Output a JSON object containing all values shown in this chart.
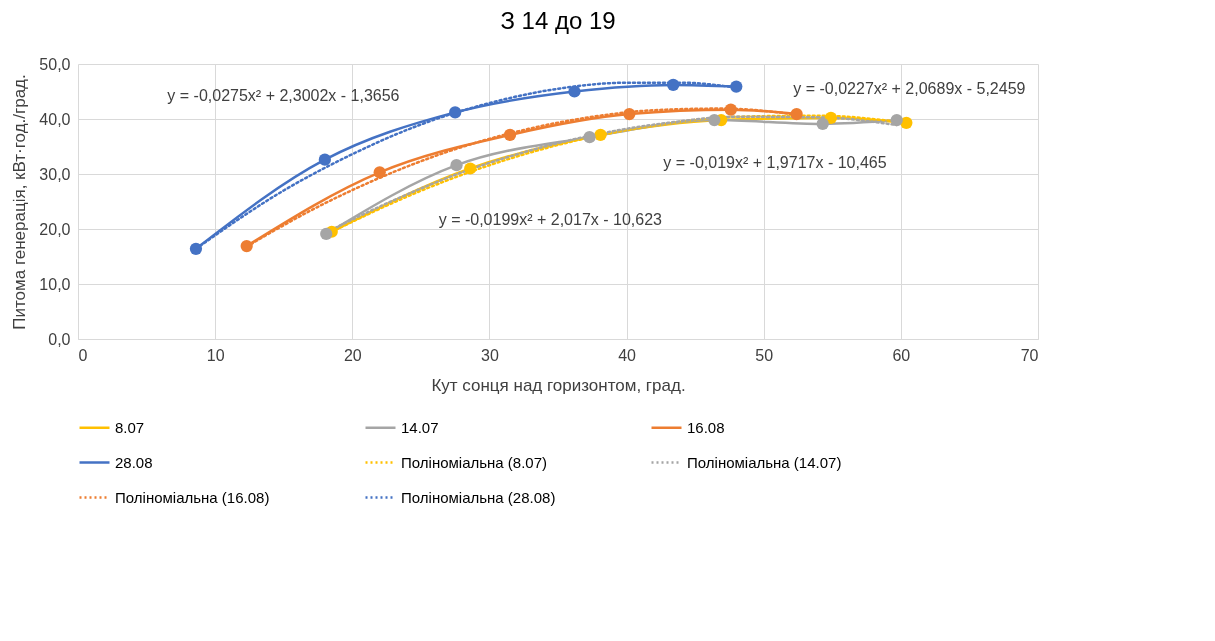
{
  "chart_data": {
    "type": "line",
    "title": "З  14 до 19",
    "xlabel": "Кут сонця над горизонтом, град.",
    "ylabel": "Питома генерація, кВт·год./град.",
    "xlim": [
      0,
      70
    ],
    "xticks": [
      0,
      10,
      20,
      30,
      40,
      50,
      60,
      70
    ],
    "ylim": [
      0,
      50
    ],
    "yticks": [
      {
        "value": 0,
        "label": "0,0"
      },
      {
        "value": 10,
        "label": "10,0"
      },
      {
        "value": 20,
        "label": "20,0"
      },
      {
        "value": 30,
        "label": "30,0"
      },
      {
        "value": 40,
        "label": "40,0"
      },
      {
        "value": 50,
        "label": "50,0"
      }
    ],
    "grid": true,
    "legend": "bottom",
    "series": [
      {
        "name": "8.07",
        "color": "#ffc000",
        "marker": "circle",
        "line_style": "solid",
        "x": [
          18.5,
          28.6,
          38.1,
          46.9,
          54.9,
          60.4
        ],
        "values": [
          19.5,
          31.0,
          37.1,
          39.8,
          40.2,
          39.3
        ]
      },
      {
        "name": "14.07",
        "color": "#a5a5a5",
        "marker": "circle",
        "line_style": "solid",
        "x": [
          18.1,
          27.6,
          37.3,
          46.4,
          54.3,
          59.7
        ],
        "values": [
          19.1,
          31.6,
          36.7,
          39.8,
          39.1,
          39.8
        ]
      },
      {
        "name": "16.08",
        "color": "#ed7d31",
        "marker": "circle",
        "line_style": "solid",
        "x": [
          12.3,
          22.0,
          31.5,
          40.2,
          47.6,
          52.4
        ],
        "values": [
          16.9,
          30.3,
          37.1,
          40.9,
          41.7,
          40.9
        ]
      },
      {
        "name": "28.08",
        "color": "#4472c4",
        "marker": "circle",
        "line_style": "solid",
        "x": [
          8.6,
          18.0,
          27.5,
          36.2,
          43.4,
          48.0
        ],
        "values": [
          16.4,
          32.6,
          41.2,
          45.0,
          46.2,
          45.9
        ]
      },
      {
        "name": "Поліноміальна (8.07)",
        "color": "#ffc000",
        "marker": "none",
        "line_style": "dotted",
        "x": [
          18.5,
          24,
          30,
          36,
          42,
          48,
          54,
          60.4
        ],
        "values": [
          19.5,
          25.9,
          31.6,
          35.9,
          38.8,
          40.4,
          40.6,
          39.3
        ]
      },
      {
        "name": "Поліноміальна (14.07)",
        "color": "#a5a5a5",
        "marker": "none",
        "line_style": "dotted",
        "x": [
          18.1,
          23,
          28,
          33,
          38,
          43,
          48,
          54,
          59.7
        ],
        "values": [
          19.4,
          25.2,
          30.3,
          34.3,
          37.3,
          39.3,
          40.4,
          40.3,
          38.9
        ]
      },
      {
        "name": "Поліноміальна (16.08)",
        "color": "#ed7d31",
        "marker": "none",
        "line_style": "dotted",
        "x": [
          12.3,
          17,
          22,
          27,
          32,
          37,
          42,
          47,
          52.4
        ],
        "values": [
          16.8,
          23.4,
          29.3,
          34.1,
          37.7,
          40.2,
          41.6,
          41.9,
          40.8
        ]
      },
      {
        "name": "Поліноміальна (28.08)",
        "color": "#4472c4",
        "marker": "none",
        "line_style": "dotted",
        "x": [
          8.6,
          15,
          20,
          25,
          30,
          35,
          40,
          44,
          48
        ],
        "values": [
          16.4,
          27.0,
          33.6,
          39.0,
          42.9,
          45.5,
          46.6,
          46.6,
          45.7
        ]
      }
    ],
    "annotations": [
      "y = -0,0275x² + 2,3002x - 1,3656",
      "y = -0,0227x² + 2,0689x - 5,2459",
      "y = -0,019x² + 1,9717x - 10,465",
      "y = -0,0199x² + 2,017x - 10,623"
    ]
  }
}
